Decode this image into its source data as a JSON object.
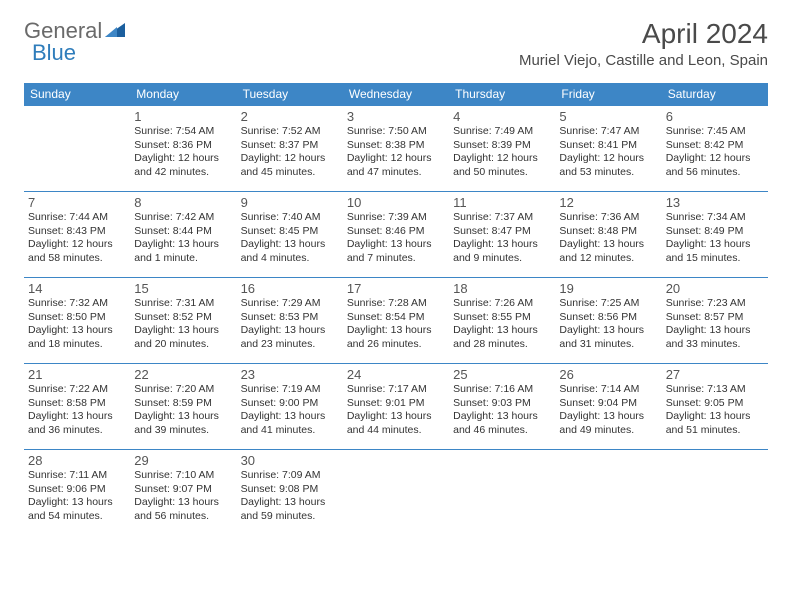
{
  "logo": {
    "general": "General",
    "blue": "Blue"
  },
  "title": "April 2024",
  "location": "Muriel Viejo, Castille and Leon, Spain",
  "colors": {
    "header_bg": "#3d86c6",
    "header_text": "#ffffff",
    "border": "#3d86c6",
    "logo_gray": "#6a6a6a",
    "logo_blue": "#2f7dbb",
    "text": "#333333"
  },
  "day_headers": [
    "Sunday",
    "Monday",
    "Tuesday",
    "Wednesday",
    "Thursday",
    "Friday",
    "Saturday"
  ],
  "weeks": [
    [
      null,
      {
        "n": "1",
        "sr": "Sunrise: 7:54 AM",
        "ss": "Sunset: 8:36 PM",
        "d1": "Daylight: 12 hours",
        "d2": "and 42 minutes."
      },
      {
        "n": "2",
        "sr": "Sunrise: 7:52 AM",
        "ss": "Sunset: 8:37 PM",
        "d1": "Daylight: 12 hours",
        "d2": "and 45 minutes."
      },
      {
        "n": "3",
        "sr": "Sunrise: 7:50 AM",
        "ss": "Sunset: 8:38 PM",
        "d1": "Daylight: 12 hours",
        "d2": "and 47 minutes."
      },
      {
        "n": "4",
        "sr": "Sunrise: 7:49 AM",
        "ss": "Sunset: 8:39 PM",
        "d1": "Daylight: 12 hours",
        "d2": "and 50 minutes."
      },
      {
        "n": "5",
        "sr": "Sunrise: 7:47 AM",
        "ss": "Sunset: 8:41 PM",
        "d1": "Daylight: 12 hours",
        "d2": "and 53 minutes."
      },
      {
        "n": "6",
        "sr": "Sunrise: 7:45 AM",
        "ss": "Sunset: 8:42 PM",
        "d1": "Daylight: 12 hours",
        "d2": "and 56 minutes."
      }
    ],
    [
      {
        "n": "7",
        "sr": "Sunrise: 7:44 AM",
        "ss": "Sunset: 8:43 PM",
        "d1": "Daylight: 12 hours",
        "d2": "and 58 minutes."
      },
      {
        "n": "8",
        "sr": "Sunrise: 7:42 AM",
        "ss": "Sunset: 8:44 PM",
        "d1": "Daylight: 13 hours",
        "d2": "and 1 minute."
      },
      {
        "n": "9",
        "sr": "Sunrise: 7:40 AM",
        "ss": "Sunset: 8:45 PM",
        "d1": "Daylight: 13 hours",
        "d2": "and 4 minutes."
      },
      {
        "n": "10",
        "sr": "Sunrise: 7:39 AM",
        "ss": "Sunset: 8:46 PM",
        "d1": "Daylight: 13 hours",
        "d2": "and 7 minutes."
      },
      {
        "n": "11",
        "sr": "Sunrise: 7:37 AM",
        "ss": "Sunset: 8:47 PM",
        "d1": "Daylight: 13 hours",
        "d2": "and 9 minutes."
      },
      {
        "n": "12",
        "sr": "Sunrise: 7:36 AM",
        "ss": "Sunset: 8:48 PM",
        "d1": "Daylight: 13 hours",
        "d2": "and 12 minutes."
      },
      {
        "n": "13",
        "sr": "Sunrise: 7:34 AM",
        "ss": "Sunset: 8:49 PM",
        "d1": "Daylight: 13 hours",
        "d2": "and 15 minutes."
      }
    ],
    [
      {
        "n": "14",
        "sr": "Sunrise: 7:32 AM",
        "ss": "Sunset: 8:50 PM",
        "d1": "Daylight: 13 hours",
        "d2": "and 18 minutes."
      },
      {
        "n": "15",
        "sr": "Sunrise: 7:31 AM",
        "ss": "Sunset: 8:52 PM",
        "d1": "Daylight: 13 hours",
        "d2": "and 20 minutes."
      },
      {
        "n": "16",
        "sr": "Sunrise: 7:29 AM",
        "ss": "Sunset: 8:53 PM",
        "d1": "Daylight: 13 hours",
        "d2": "and 23 minutes."
      },
      {
        "n": "17",
        "sr": "Sunrise: 7:28 AM",
        "ss": "Sunset: 8:54 PM",
        "d1": "Daylight: 13 hours",
        "d2": "and 26 minutes."
      },
      {
        "n": "18",
        "sr": "Sunrise: 7:26 AM",
        "ss": "Sunset: 8:55 PM",
        "d1": "Daylight: 13 hours",
        "d2": "and 28 minutes."
      },
      {
        "n": "19",
        "sr": "Sunrise: 7:25 AM",
        "ss": "Sunset: 8:56 PM",
        "d1": "Daylight: 13 hours",
        "d2": "and 31 minutes."
      },
      {
        "n": "20",
        "sr": "Sunrise: 7:23 AM",
        "ss": "Sunset: 8:57 PM",
        "d1": "Daylight: 13 hours",
        "d2": "and 33 minutes."
      }
    ],
    [
      {
        "n": "21",
        "sr": "Sunrise: 7:22 AM",
        "ss": "Sunset: 8:58 PM",
        "d1": "Daylight: 13 hours",
        "d2": "and 36 minutes."
      },
      {
        "n": "22",
        "sr": "Sunrise: 7:20 AM",
        "ss": "Sunset: 8:59 PM",
        "d1": "Daylight: 13 hours",
        "d2": "and 39 minutes."
      },
      {
        "n": "23",
        "sr": "Sunrise: 7:19 AM",
        "ss": "Sunset: 9:00 PM",
        "d1": "Daylight: 13 hours",
        "d2": "and 41 minutes."
      },
      {
        "n": "24",
        "sr": "Sunrise: 7:17 AM",
        "ss": "Sunset: 9:01 PM",
        "d1": "Daylight: 13 hours",
        "d2": "and 44 minutes."
      },
      {
        "n": "25",
        "sr": "Sunrise: 7:16 AM",
        "ss": "Sunset: 9:03 PM",
        "d1": "Daylight: 13 hours",
        "d2": "and 46 minutes."
      },
      {
        "n": "26",
        "sr": "Sunrise: 7:14 AM",
        "ss": "Sunset: 9:04 PM",
        "d1": "Daylight: 13 hours",
        "d2": "and 49 minutes."
      },
      {
        "n": "27",
        "sr": "Sunrise: 7:13 AM",
        "ss": "Sunset: 9:05 PM",
        "d1": "Daylight: 13 hours",
        "d2": "and 51 minutes."
      }
    ],
    [
      {
        "n": "28",
        "sr": "Sunrise: 7:11 AM",
        "ss": "Sunset: 9:06 PM",
        "d1": "Daylight: 13 hours",
        "d2": "and 54 minutes."
      },
      {
        "n": "29",
        "sr": "Sunrise: 7:10 AM",
        "ss": "Sunset: 9:07 PM",
        "d1": "Daylight: 13 hours",
        "d2": "and 56 minutes."
      },
      {
        "n": "30",
        "sr": "Sunrise: 7:09 AM",
        "ss": "Sunset: 9:08 PM",
        "d1": "Daylight: 13 hours",
        "d2": "and 59 minutes."
      },
      null,
      null,
      null,
      null
    ]
  ]
}
